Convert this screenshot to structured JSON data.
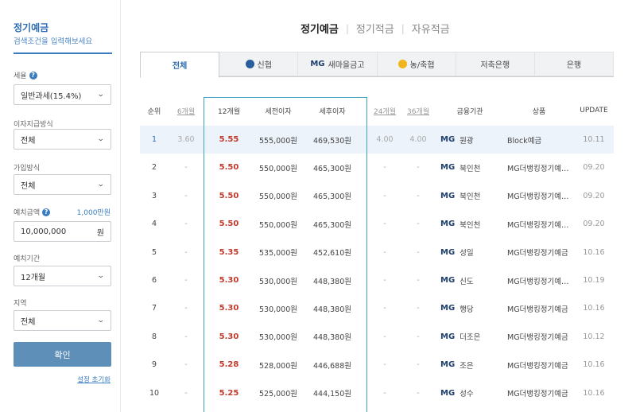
{
  "sidebar": {
    "title": "정기예금",
    "subtitle": "검색조건을 입력해보세요",
    "tax_label": "세율",
    "tax_value": "일반과세(15.4%)",
    "interest_method_label": "이자지급방식",
    "interest_method_value": "전체",
    "join_method_label": "가입방식",
    "join_method_value": "전체",
    "amount_label": "예치금액",
    "amount_unit_link": "1,000만원",
    "amount_value": "10,000,000",
    "amount_suffix": "원",
    "period_label": "예치기간",
    "period_value": "12개월",
    "region_label": "지역",
    "region_value": "전체",
    "confirm_label": "확인",
    "reset_label": "설정 초기화"
  },
  "top_tabs": [
    "정기예금",
    "정기적금",
    "자유적금"
  ],
  "bank_tabs": [
    "전체",
    "신협",
    "새마을금고",
    "농/축협",
    "저축은행",
    "은행"
  ],
  "bank_tab_mg": "MG",
  "table": {
    "headers": [
      "순위",
      "6개월",
      "12개월",
      "세전이자",
      "세후이자",
      "24개월",
      "36개월",
      "금융기관",
      "상품",
      "UPDATE"
    ],
    "rows": [
      {
        "rank": "1",
        "m6": "3.60",
        "m12": "5.55",
        "pre": "555,000원",
        "post": "469,530원",
        "m24": "4.00",
        "m36": "4.00",
        "mg": "MG",
        "inst": "원광",
        "product": "Block예금",
        "update": "10.11"
      },
      {
        "rank": "2",
        "m6": "-",
        "m12": "5.50",
        "pre": "550,000원",
        "post": "465,300원",
        "m24": "-",
        "m36": "-",
        "mg": "MG",
        "inst": "북인천",
        "product": "MG더뱅킹정기예…",
        "update": "09.20"
      },
      {
        "rank": "3",
        "m6": "-",
        "m12": "5.50",
        "pre": "550,000원",
        "post": "465,300원",
        "m24": "-",
        "m36": "-",
        "mg": "MG",
        "inst": "북인천",
        "product": "MG더뱅킹정기예…",
        "update": "09.20"
      },
      {
        "rank": "4",
        "m6": "-",
        "m12": "5.50",
        "pre": "550,000원",
        "post": "465,300원",
        "m24": "-",
        "m36": "-",
        "mg": "MG",
        "inst": "북인천",
        "product": "MG더뱅킹정기예…",
        "update": "09.20"
      },
      {
        "rank": "5",
        "m6": "-",
        "m12": "5.35",
        "pre": "535,000원",
        "post": "452,610원",
        "m24": "-",
        "m36": "-",
        "mg": "MG",
        "inst": "성일",
        "product": "MG더뱅킹정기예금",
        "update": "10.16"
      },
      {
        "rank": "6",
        "m6": "-",
        "m12": "5.30",
        "pre": "530,000원",
        "post": "448,380원",
        "m24": "-",
        "m36": "-",
        "mg": "MG",
        "inst": "신도",
        "product": "MG더뱅킹정기예…",
        "update": "10.19"
      },
      {
        "rank": "7",
        "m6": "-",
        "m12": "5.30",
        "pre": "530,000원",
        "post": "448,380원",
        "m24": "-",
        "m36": "-",
        "mg": "MG",
        "inst": "행당",
        "product": "MG더뱅킹정기예금",
        "update": "10.16"
      },
      {
        "rank": "8",
        "m6": "-",
        "m12": "5.30",
        "pre": "530,000원",
        "post": "448,380원",
        "m24": "-",
        "m36": "-",
        "mg": "MG",
        "inst": "더조은",
        "product": "MG더뱅킹정기예금",
        "update": "10.12"
      },
      {
        "rank": "9",
        "m6": "-",
        "m12": "5.28",
        "pre": "528,000원",
        "post": "446,688원",
        "m24": "-",
        "m36": "-",
        "mg": "MG",
        "inst": "조은",
        "product": "MG더뱅킹정기예금",
        "update": "10.16"
      },
      {
        "rank": "10",
        "m6": "-",
        "m12": "5.25",
        "pre": "525,000원",
        "post": "444,150원",
        "m24": "-",
        "m36": "-",
        "mg": "MG",
        "inst": "성수",
        "product": "MG더뱅킹정기예금",
        "update": "10.16"
      }
    ]
  },
  "colors": {
    "accent": "#2d6db3",
    "rate_red": "#c0392b",
    "highlight_border": "#3aa3b8",
    "confirm_button": "#5d8fb9"
  }
}
